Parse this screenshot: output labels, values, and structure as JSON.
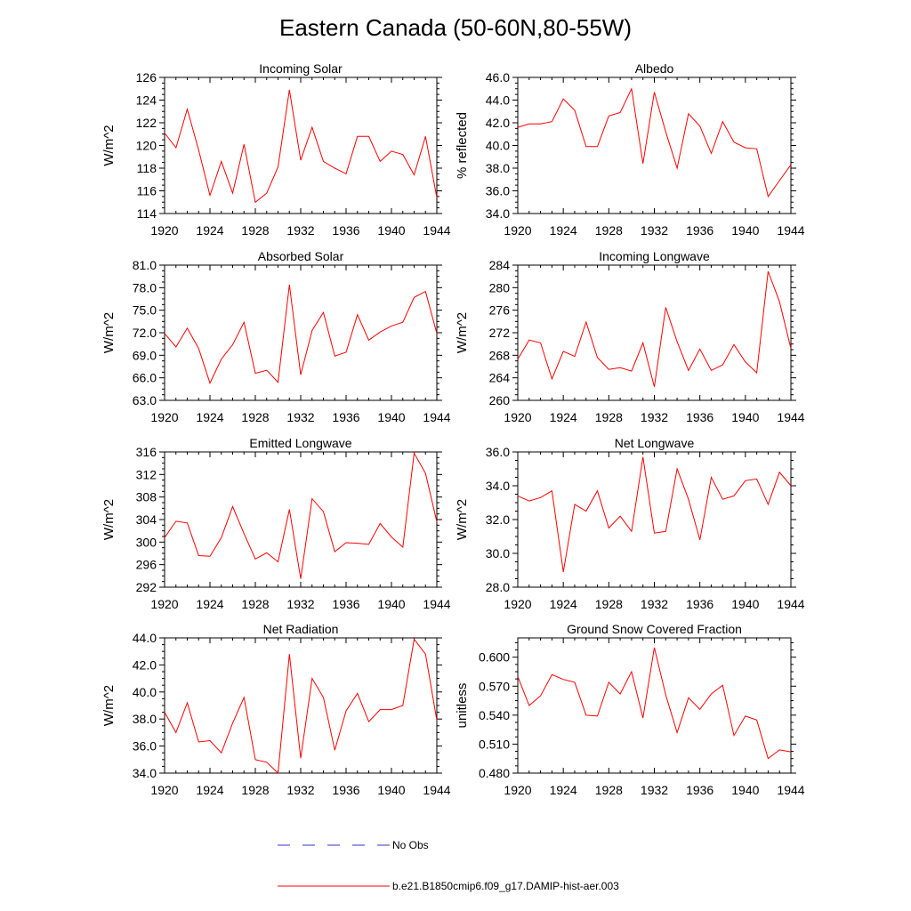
{
  "title": "Eastern Canada (50-60N,80-55W)",
  "colors": {
    "model": "#ff0000",
    "obs": "#3333cc",
    "axis": "#000000"
  },
  "legend": {
    "obs_label": "No Obs",
    "model_label": "b.e21.B1850cmip6.f09_g17.DAMIP-hist-aer.003"
  },
  "chart_data": [
    {
      "type": "line",
      "title": "Incoming Solar",
      "xlabel": "",
      "ylabel": "W/m^2",
      "xlim": [
        1920,
        1944
      ],
      "ylim": [
        114,
        126
      ],
      "xticks": [
        "1920",
        "1924",
        "1928",
        "1932",
        "1936",
        "1940",
        "1944"
      ],
      "yticks": [
        "114",
        "116",
        "118",
        "120",
        "122",
        "124",
        "126"
      ],
      "x": [
        1920,
        1921,
        1922,
        1923,
        1924,
        1925,
        1926,
        1927,
        1928,
        1929,
        1930,
        1931,
        1932,
        1933,
        1934,
        1935,
        1936,
        1937,
        1938,
        1939,
        1940,
        1941,
        1942,
        1943,
        1944
      ],
      "series": [
        {
          "name": "b.e21.B1850cmip6.f09_g17.DAMIP-hist-aer.003",
          "values": [
            121.1,
            119.8,
            123.2,
            119.6,
            115.6,
            118.6,
            115.8,
            120.1,
            115.0,
            115.8,
            118.1,
            124.9,
            118.7,
            121.6,
            118.6,
            118.0,
            117.5,
            120.8,
            120.8,
            118.6,
            119.5,
            119.2,
            117.4,
            120.8,
            115.4
          ]
        }
      ]
    },
    {
      "type": "line",
      "title": "Albedo",
      "xlabel": "",
      "ylabel": "% reflected",
      "xlim": [
        1920,
        1944
      ],
      "ylim": [
        34.0,
        46.0
      ],
      "xticks": [
        "1920",
        "1924",
        "1928",
        "1932",
        "1936",
        "1940",
        "1944"
      ],
      "yticks": [
        "34.0",
        "36.0",
        "38.0",
        "40.0",
        "42.0",
        "44.0",
        "46.0"
      ],
      "x": [
        1920,
        1921,
        1922,
        1923,
        1924,
        1925,
        1926,
        1927,
        1928,
        1929,
        1930,
        1931,
        1932,
        1933,
        1934,
        1935,
        1936,
        1937,
        1938,
        1939,
        1940,
        1941,
        1942,
        1943,
        1944
      ],
      "series": [
        {
          "name": "b.e21.B1850cmip6.f09_g17.DAMIP-hist-aer.003",
          "values": [
            41.6,
            41.9,
            41.9,
            42.1,
            44.1,
            43.1,
            39.9,
            39.9,
            42.6,
            42.9,
            45.0,
            38.4,
            44.7,
            41.2,
            38.0,
            42.8,
            41.7,
            39.3,
            42.1,
            40.3,
            39.8,
            39.7,
            35.5,
            36.9,
            38.3
          ]
        }
      ]
    },
    {
      "type": "line",
      "title": "Absorbed Solar",
      "xlabel": "",
      "ylabel": "W/m^2",
      "xlim": [
        1920,
        1944
      ],
      "ylim": [
        63.0,
        81.0
      ],
      "xticks": [
        "1920",
        "1924",
        "1928",
        "1932",
        "1936",
        "1940",
        "1944"
      ],
      "yticks": [
        "63.0",
        "66.0",
        "69.0",
        "72.0",
        "75.0",
        "78.0",
        "81.0"
      ],
      "x": [
        1920,
        1921,
        1922,
        1923,
        1924,
        1925,
        1926,
        1927,
        1928,
        1929,
        1930,
        1931,
        1932,
        1933,
        1934,
        1935,
        1936,
        1937,
        1938,
        1939,
        1940,
        1941,
        1942,
        1943,
        1944
      ],
      "series": [
        {
          "name": "b.e21.B1850cmip6.f09_g17.DAMIP-hist-aer.003",
          "values": [
            71.9,
            70.1,
            72.6,
            69.9,
            65.3,
            68.5,
            70.4,
            73.4,
            66.6,
            67.0,
            65.4,
            78.4,
            66.4,
            72.3,
            74.7,
            68.9,
            69.4,
            74.4,
            71.0,
            72.1,
            72.9,
            73.4,
            76.7,
            77.5,
            71.9
          ]
        }
      ]
    },
    {
      "type": "line",
      "title": "Incoming Longwave",
      "xlabel": "",
      "ylabel": "W/m^2",
      "xlim": [
        1920,
        1944
      ],
      "ylim": [
        260,
        284
      ],
      "xticks": [
        "1920",
        "1924",
        "1928",
        "1932",
        "1936",
        "1940",
        "1944"
      ],
      "yticks": [
        "260",
        "264",
        "268",
        "272",
        "276",
        "280",
        "284"
      ],
      "x": [
        1920,
        1921,
        1922,
        1923,
        1924,
        1925,
        1926,
        1927,
        1928,
        1929,
        1930,
        1931,
        1932,
        1933,
        1934,
        1935,
        1936,
        1937,
        1938,
        1939,
        1940,
        1941,
        1942,
        1943,
        1944
      ],
      "series": [
        {
          "name": "b.e21.B1850cmip6.f09_g17.DAMIP-hist-aer.003",
          "values": [
            267.3,
            270.7,
            270.2,
            263.8,
            268.7,
            267.8,
            273.9,
            267.6,
            265.5,
            265.8,
            265.2,
            270.2,
            262.4,
            276.5,
            270.4,
            265.3,
            269.1,
            265.3,
            266.3,
            269.9,
            266.8,
            264.9,
            282.9,
            277.5,
            269.2
          ]
        }
      ]
    },
    {
      "type": "line",
      "title": "Emitted Longwave",
      "xlabel": "",
      "ylabel": "W/m^2",
      "xlim": [
        1920,
        1944
      ],
      "ylim": [
        292,
        316
      ],
      "xticks": [
        "1920",
        "1924",
        "1928",
        "1932",
        "1936",
        "1940",
        "1944"
      ],
      "yticks": [
        "292",
        "296",
        "300",
        "304",
        "308",
        "312",
        "316"
      ],
      "x": [
        1920,
        1921,
        1922,
        1923,
        1924,
        1925,
        1926,
        1927,
        1928,
        1929,
        1930,
        1931,
        1932,
        1933,
        1934,
        1935,
        1936,
        1937,
        1938,
        1939,
        1940,
        1941,
        1942,
        1943,
        1944
      ],
      "series": [
        {
          "name": "b.e21.B1850cmip6.f09_g17.DAMIP-hist-aer.003",
          "values": [
            300.8,
            303.7,
            303.4,
            297.6,
            297.5,
            300.8,
            306.3,
            301.5,
            297.0,
            298.1,
            296.5,
            305.8,
            293.5,
            307.7,
            305.4,
            298.3,
            299.9,
            299.8,
            299.6,
            303.3,
            300.9,
            299.1,
            315.8,
            312.2,
            303.6
          ]
        }
      ]
    },
    {
      "type": "line",
      "title": "Net Longwave",
      "xlabel": "",
      "ylabel": "W/m^2",
      "xlim": [
        1920,
        1944
      ],
      "ylim": [
        28.0,
        36.0
      ],
      "xticks": [
        "1920",
        "1924",
        "1928",
        "1932",
        "1936",
        "1940",
        "1944"
      ],
      "yticks": [
        "28.0",
        "30.0",
        "32.0",
        "34.0",
        "36.0"
      ],
      "x": [
        1920,
        1921,
        1922,
        1923,
        1924,
        1925,
        1926,
        1927,
        1928,
        1929,
        1930,
        1931,
        1932,
        1933,
        1934,
        1935,
        1936,
        1937,
        1938,
        1939,
        1940,
        1941,
        1942,
        1943,
        1944
      ],
      "series": [
        {
          "name": "b.e21.B1850cmip6.f09_g17.DAMIP-hist-aer.003",
          "values": [
            33.4,
            33.1,
            33.3,
            33.7,
            28.9,
            32.9,
            32.5,
            33.7,
            31.5,
            32.2,
            31.3,
            35.7,
            31.2,
            31.3,
            35.0,
            33.2,
            30.8,
            34.5,
            33.2,
            33.4,
            34.3,
            34.4,
            32.9,
            34.8,
            34.0
          ]
        }
      ]
    },
    {
      "type": "line",
      "title": "Net Radiation",
      "xlabel": "",
      "ylabel": "W/m^2",
      "xlim": [
        1920,
        1944
      ],
      "ylim": [
        34.0,
        44.0
      ],
      "xticks": [
        "1920",
        "1924",
        "1928",
        "1932",
        "1936",
        "1940",
        "1944"
      ],
      "yticks": [
        "34.0",
        "36.0",
        "38.0",
        "40.0",
        "42.0",
        "44.0"
      ],
      "x": [
        1920,
        1921,
        1922,
        1923,
        1924,
        1925,
        1926,
        1927,
        1928,
        1929,
        1930,
        1931,
        1932,
        1933,
        1934,
        1935,
        1936,
        1937,
        1938,
        1939,
        1940,
        1941,
        1942,
        1943,
        1944
      ],
      "series": [
        {
          "name": "b.e21.B1850cmip6.f09_g17.DAMIP-hist-aer.003",
          "values": [
            38.5,
            37.0,
            39.2,
            36.3,
            36.4,
            35.5,
            37.7,
            39.6,
            35.0,
            34.8,
            34.0,
            42.8,
            35.1,
            41.0,
            39.6,
            35.7,
            38.6,
            39.9,
            37.8,
            38.7,
            38.7,
            39.0,
            43.9,
            42.8,
            37.9
          ]
        }
      ]
    },
    {
      "type": "line",
      "title": "Ground Snow Covered Fraction",
      "xlabel": "",
      "ylabel": "unitless",
      "xlim": [
        1920,
        1944
      ],
      "ylim": [
        0.48,
        0.62
      ],
      "xticks": [
        "1920",
        "1924",
        "1928",
        "1932",
        "1936",
        "1940",
        "1944"
      ],
      "yticks": [
        "0.480",
        "0.510",
        "0.540",
        "0.570",
        "0.600"
      ],
      "x": [
        1920,
        1921,
        1922,
        1923,
        1924,
        1925,
        1926,
        1927,
        1928,
        1929,
        1930,
        1931,
        1932,
        1933,
        1934,
        1935,
        1936,
        1937,
        1938,
        1939,
        1940,
        1941,
        1942,
        1943,
        1944
      ],
      "series": [
        {
          "name": "b.e21.B1850cmip6.f09_g17.DAMIP-hist-aer.003",
          "values": [
            0.58,
            0.55,
            0.56,
            0.582,
            0.577,
            0.574,
            0.54,
            0.539,
            0.574,
            0.562,
            0.585,
            0.537,
            0.61,
            0.561,
            0.522,
            0.558,
            0.546,
            0.562,
            0.571,
            0.519,
            0.539,
            0.535,
            0.495,
            0.504,
            0.502
          ]
        }
      ]
    }
  ]
}
